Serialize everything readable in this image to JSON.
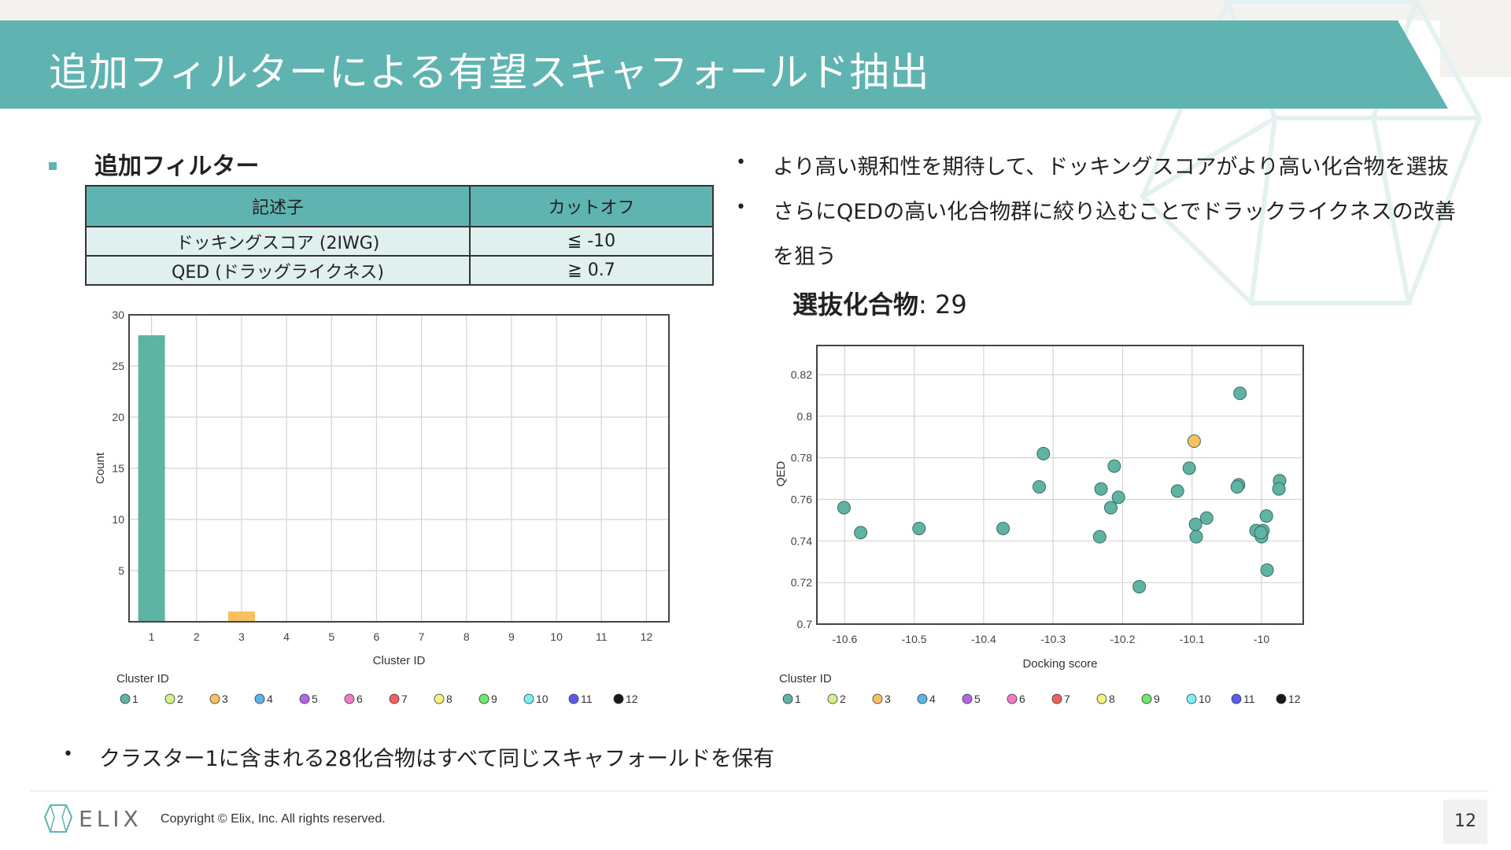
{
  "colors": {
    "accent": "#5fb3b0",
    "bar_cluster1": "#5fb3b0",
    "bar_cluster3": "#f6c659",
    "highlight_point": "#f6c659"
  },
  "slide": {
    "title": "追加フィルターによる有望スキャフォールド抽出",
    "page_number": "12"
  },
  "filters": {
    "heading": "追加フィルター",
    "headers": [
      "記述子",
      "カットオフ"
    ],
    "rows": [
      {
        "descriptor": "ドッキングスコア (2IWG)",
        "cutoff": "≦ -10"
      },
      {
        "descriptor": "QED (ドラッグライクネス)",
        "cutoff": "≧ 0.7"
      }
    ]
  },
  "bullets": {
    "b1": "より高い親和性を期待して、ドッキングスコアがより高い化合物を選抜",
    "b2_line1": "さらにQEDの高い化合物群に絞り込むことでドラックライクネスの改善",
    "b2_line2": "を狙う"
  },
  "selected": {
    "label": "選抜化合物",
    "value": ": 29"
  },
  "bottom_note": "クラスター1に含まれる28化合物はすべて同じスキャフォールドを保有",
  "footer": {
    "logo": "ELIX",
    "copyright": "Copyright © Elix, Inc. All rights reserved."
  },
  "chart_data": [
    {
      "type": "bar",
      "title": "",
      "xlabel": "Cluster ID",
      "ylabel": "Count",
      "categories": [
        "1",
        "2",
        "3",
        "4",
        "5",
        "6",
        "7",
        "8",
        "9",
        "10",
        "11",
        "12"
      ],
      "values": [
        28,
        0,
        1,
        0,
        0,
        0,
        0,
        0,
        0,
        0,
        0,
        0
      ],
      "ylim": [
        0,
        30
      ],
      "yticks": [
        5,
        10,
        15,
        20,
        25,
        30
      ],
      "grid": true,
      "legend": {
        "title": "Cluster ID",
        "items": [
          {
            "label": "1",
            "color": "#5fb3a3"
          },
          {
            "label": "2",
            "color": "#d4f08a"
          },
          {
            "label": "3",
            "color": "#f6c15e"
          },
          {
            "label": "4",
            "color": "#5ab4e8"
          },
          {
            "label": "5",
            "color": "#b565e8"
          },
          {
            "label": "6",
            "color": "#f07ac8"
          },
          {
            "label": "7",
            "color": "#f0625e"
          },
          {
            "label": "8",
            "color": "#f4f27a"
          },
          {
            "label": "9",
            "color": "#6ee870"
          },
          {
            "label": "10",
            "color": "#78f2f2"
          },
          {
            "label": "11",
            "color": "#5a5cf0"
          },
          {
            "label": "12",
            "color": "#1a1a1a"
          }
        ]
      }
    },
    {
      "type": "scatter",
      "title": "",
      "xlabel": "Docking score",
      "ylabel": "QED",
      "xlim": [
        -10.64,
        -9.94
      ],
      "ylim": [
        0.7,
        0.834
      ],
      "xticks": [
        -10.6,
        -10.5,
        -10.4,
        -10.3,
        -10.2,
        -10.1,
        -10
      ],
      "yticks": [
        0.7,
        0.72,
        0.74,
        0.76,
        0.78,
        0.8,
        0.82
      ],
      "grid": true,
      "points": [
        {
          "x": -10.601,
          "y": 0.756,
          "cluster": "1"
        },
        {
          "x": -10.577,
          "y": 0.744,
          "cluster": "1"
        },
        {
          "x": -10.493,
          "y": 0.746,
          "cluster": "1"
        },
        {
          "x": -10.372,
          "y": 0.746,
          "cluster": "1"
        },
        {
          "x": -10.314,
          "y": 0.782,
          "cluster": "1"
        },
        {
          "x": -10.32,
          "y": 0.766,
          "cluster": "1"
        },
        {
          "x": -10.233,
          "y": 0.742,
          "cluster": "1"
        },
        {
          "x": -10.231,
          "y": 0.765,
          "cluster": "1"
        },
        {
          "x": -10.212,
          "y": 0.776,
          "cluster": "1"
        },
        {
          "x": -10.217,
          "y": 0.756,
          "cluster": "1"
        },
        {
          "x": -10.206,
          "y": 0.761,
          "cluster": "1"
        },
        {
          "x": -10.176,
          "y": 0.718,
          "cluster": "1"
        },
        {
          "x": -10.121,
          "y": 0.764,
          "cluster": "1"
        },
        {
          "x": -10.104,
          "y": 0.775,
          "cluster": "1"
        },
        {
          "x": -10.097,
          "y": 0.788,
          "cluster": "3"
        },
        {
          "x": -10.095,
          "y": 0.748,
          "cluster": "1"
        },
        {
          "x": -10.094,
          "y": 0.742,
          "cluster": "1"
        },
        {
          "x": -10.079,
          "y": 0.751,
          "cluster": "1"
        },
        {
          "x": -10.031,
          "y": 0.811,
          "cluster": "1"
        },
        {
          "x": -10.033,
          "y": 0.767,
          "cluster": "1"
        },
        {
          "x": -10.035,
          "y": 0.766,
          "cluster": "1"
        },
        {
          "x": -10.008,
          "y": 0.745,
          "cluster": "1"
        },
        {
          "x": -9.998,
          "y": 0.745,
          "cluster": "1"
        },
        {
          "x": -10.0,
          "y": 0.742,
          "cluster": "1"
        },
        {
          "x": -9.993,
          "y": 0.752,
          "cluster": "1"
        },
        {
          "x": -9.992,
          "y": 0.726,
          "cluster": "1"
        },
        {
          "x": -9.974,
          "y": 0.769,
          "cluster": "1"
        },
        {
          "x": -9.975,
          "y": 0.765,
          "cluster": "1"
        },
        {
          "x": -10.001,
          "y": 0.744,
          "cluster": "1"
        }
      ],
      "legend": {
        "title": "Cluster ID",
        "items": [
          {
            "label": "1",
            "color": "#5fb3a3"
          },
          {
            "label": "2",
            "color": "#d4f08a"
          },
          {
            "label": "3",
            "color": "#f6c15e"
          },
          {
            "label": "4",
            "color": "#5ab4e8"
          },
          {
            "label": "5",
            "color": "#b565e8"
          },
          {
            "label": "6",
            "color": "#f07ac8"
          },
          {
            "label": "7",
            "color": "#f0625e"
          },
          {
            "label": "8",
            "color": "#f4f27a"
          },
          {
            "label": "9",
            "color": "#6ee870"
          },
          {
            "label": "10",
            "color": "#78f2f2"
          },
          {
            "label": "11",
            "color": "#5a5cf0"
          },
          {
            "label": "12",
            "color": "#1a1a1a"
          }
        ]
      }
    }
  ]
}
